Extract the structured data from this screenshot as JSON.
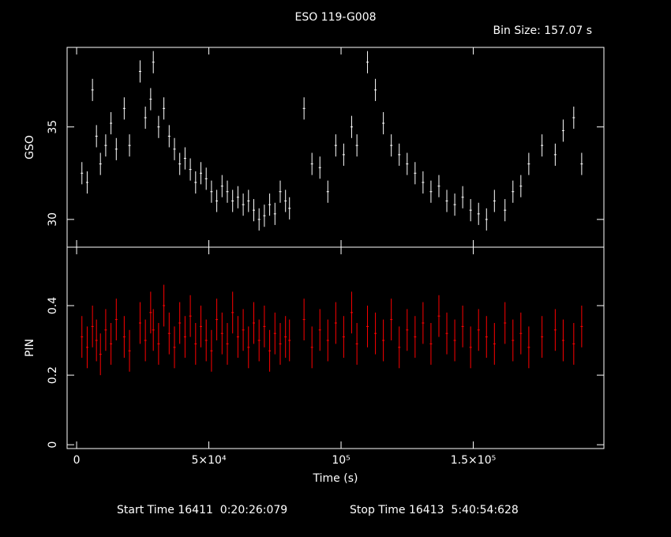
{
  "chart_data": [
    {
      "type": "errorbar",
      "title": "ESO 119-G008",
      "subtitle": "Bin Size: 157.07 s",
      "ylabel": "GSO",
      "color": "#ffffff",
      "xlim": [
        -3600,
        199400
      ],
      "xticks": [
        0,
        50000,
        100000,
        150000
      ],
      "ylim": [
        28.5,
        39.3
      ],
      "yticks": [
        30,
        35
      ],
      "yerr": 0.6,
      "x": [
        2000,
        4000,
        6000,
        7500,
        9000,
        11000,
        13000,
        15000,
        18000,
        20000,
        24000,
        26000,
        28000,
        29000,
        31000,
        33000,
        35000,
        37000,
        39000,
        41000,
        43000,
        45000,
        47000,
        49000,
        51000,
        53000,
        55000,
        57000,
        59000,
        61000,
        63000,
        65000,
        67000,
        69000,
        71000,
        73000,
        75000,
        77000,
        79000,
        80500,
        86000,
        89000,
        92000,
        95000,
        98000,
        101000,
        104000,
        106000,
        110000,
        113000,
        116000,
        119000,
        122000,
        125000,
        128000,
        131000,
        134000,
        137000,
        140000,
        143000,
        146000,
        149000,
        152000,
        155000,
        158000,
        162000,
        165000,
        168000,
        171000,
        176000,
        181000,
        184000,
        188000,
        191000
      ],
      "values": [
        32.5,
        32.0,
        37.0,
        34.5,
        33.0,
        34.0,
        35.2,
        33.8,
        36.0,
        34.0,
        38.0,
        35.5,
        36.5,
        38.5,
        35.0,
        36.0,
        34.5,
        33.8,
        33.0,
        33.3,
        32.7,
        32.0,
        32.5,
        32.2,
        31.5,
        31.0,
        31.8,
        31.5,
        31.0,
        31.2,
        30.8,
        31.0,
        30.5,
        30.0,
        30.2,
        30.8,
        30.3,
        31.5,
        31.0,
        30.6,
        36.0,
        33.0,
        32.8,
        31.5,
        34.0,
        33.5,
        35.0,
        34.0,
        38.5,
        37.0,
        35.2,
        34.0,
        33.5,
        33.0,
        32.5,
        32.0,
        31.5,
        31.8,
        31.0,
        30.8,
        31.2,
        30.5,
        30.3,
        30.0,
        31.0,
        30.5,
        31.5,
        31.8,
        33.0,
        34.0,
        33.5,
        34.8,
        35.5,
        33.0
      ]
    },
    {
      "type": "errorbar",
      "ylabel": "PIN",
      "xlabel": "Time (s)",
      "color": "#ff0000",
      "xlim": [
        -3600,
        199400
      ],
      "xticks": [
        0,
        {
          "value": 50000,
          "label": "5×10⁴"
        },
        {
          "value": 100000,
          "label": "10⁵"
        },
        {
          "value": 150000,
          "label": "1.5×10⁵"
        }
      ],
      "ylim": [
        -0.011,
        0.568
      ],
      "yticks": [
        0,
        0.2,
        0.4
      ],
      "yerr": 0.06,
      "x": [
        2000,
        4000,
        6000,
        7500,
        9000,
        11000,
        13000,
        15000,
        18000,
        20000,
        24000,
        26000,
        28000,
        29000,
        31000,
        33000,
        35000,
        37000,
        39000,
        41000,
        43000,
        45000,
        47000,
        49000,
        51000,
        53000,
        55000,
        57000,
        59000,
        61000,
        63000,
        65000,
        67000,
        69000,
        71000,
        73000,
        75000,
        77000,
        79000,
        80500,
        86000,
        89000,
        92000,
        95000,
        98000,
        101000,
        104000,
        106000,
        110000,
        113000,
        116000,
        119000,
        122000,
        125000,
        128000,
        131000,
        134000,
        137000,
        140000,
        143000,
        146000,
        149000,
        152000,
        155000,
        158000,
        162000,
        165000,
        168000,
        171000,
        176000,
        181000,
        184000,
        188000,
        191000
      ],
      "values": [
        0.31,
        0.28,
        0.34,
        0.3,
        0.26,
        0.33,
        0.29,
        0.36,
        0.31,
        0.27,
        0.35,
        0.3,
        0.38,
        0.33,
        0.29,
        0.4,
        0.32,
        0.28,
        0.35,
        0.31,
        0.37,
        0.29,
        0.34,
        0.3,
        0.27,
        0.36,
        0.32,
        0.29,
        0.38,
        0.31,
        0.33,
        0.28,
        0.35,
        0.3,
        0.34,
        0.27,
        0.32,
        0.29,
        0.31,
        0.3,
        0.36,
        0.28,
        0.33,
        0.3,
        0.35,
        0.31,
        0.38,
        0.29,
        0.34,
        0.32,
        0.3,
        0.36,
        0.28,
        0.33,
        0.31,
        0.35,
        0.29,
        0.37,
        0.32,
        0.3,
        0.34,
        0.28,
        0.33,
        0.31,
        0.29,
        0.35,
        0.3,
        0.32,
        0.28,
        0.31,
        0.33,
        0.3,
        0.29,
        0.34
      ]
    }
  ],
  "footer": {
    "start": "Start Time 16411  0:20:26:079",
    "stop": "Stop Time 16413  5:40:54:628"
  }
}
